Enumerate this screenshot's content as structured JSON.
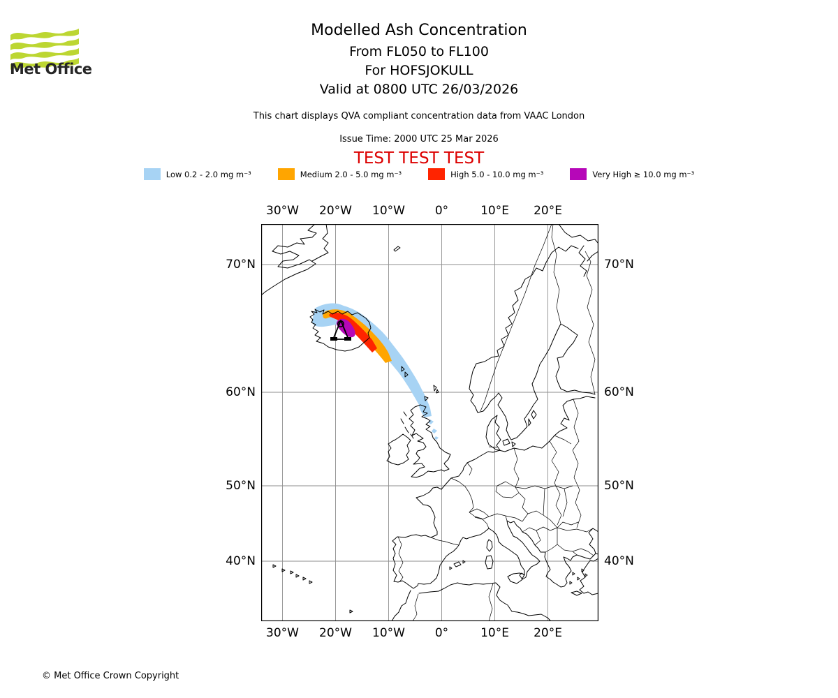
{
  "header": {
    "logo_text": "Met Office",
    "title": "Modelled Ash Concentration",
    "subtitle_flight_levels": "From FL050 to FL100",
    "subtitle_volcano": "For HOFSJOKULL",
    "subtitle_valid": "Valid at 0800 UTC 26/03/2026"
  },
  "info": {
    "qva_note": "This chart displays QVA compliant concentration data from VAAC London",
    "issue_time": "Issue Time: 2000 UTC 25 Mar 2026",
    "test_banner": "TEST TEST TEST",
    "test_color": "#dc0000"
  },
  "legend": {
    "items": [
      {
        "label": "Low 0.2 - 2.0 mg m⁻³",
        "color": "#A7D3F4"
      },
      {
        "label": "Medium 2.0 - 5.0 mg m⁻³",
        "color": "#FFA500"
      },
      {
        "label": "High 5.0 - 10.0 mg m⁻³",
        "color": "#FF2400"
      },
      {
        "label": "Very High ≥ 10.0 mg m⁻³",
        "color": "#B607B8"
      }
    ]
  },
  "map": {
    "x_ticks": [
      "30°W",
      "20°W",
      "10°W",
      "0°",
      "10°E",
      "20°E"
    ],
    "y_ticks": [
      "70°N",
      "60°N",
      "50°N",
      "40°N"
    ],
    "volcano_name": "HOFSJOKULL",
    "grid_color": "#8e8e8e",
    "coast_color": "#000000"
  },
  "footer": {
    "copyright": "© Met Office Crown Copyright"
  },
  "chart_data": {
    "type": "map",
    "projection": "mercator",
    "extent": {
      "lon_min": -34,
      "lon_max": 29.5,
      "lat_min": 31,
      "lat_max": 72.5
    },
    "x_tick_values_deg_east": [
      -30,
      -20,
      -10,
      0,
      10,
      20
    ],
    "y_tick_values_deg_north": [
      70,
      60,
      50,
      40
    ],
    "grid": true,
    "ash_plume": {
      "source_volcano": "HOFSJOKULL",
      "source_location_lonlat": [
        -18.9,
        64.8
      ],
      "plume_axis_lonlat": [
        [
          -19.5,
          64.9
        ],
        [
          -15,
          63.8
        ],
        [
          -10,
          62
        ],
        [
          -6,
          60.5
        ],
        [
          -3.5,
          58.8
        ]
      ],
      "concentration_bands": [
        {
          "level": "Low",
          "range": "0.2 - 2.0 mg m⁻³",
          "color": "#A7D3F4",
          "extent": "broad band from west of Iceland southeast to northern Scotland"
        },
        {
          "level": "Medium",
          "range": "2.0 - 5.0 mg m⁻³",
          "color": "#FFA500",
          "extent": "central Iceland southeast to about 10°W, 62.5°N"
        },
        {
          "level": "High",
          "range": "5.0 - 10.0 mg m⁻³",
          "color": "#FF2400",
          "extent": "over central and southeast Iceland"
        },
        {
          "level": "Very High",
          "range": "≥ 10.0 mg m⁻³",
          "color": "#B607B8",
          "extent": "small area at the Hofsjokull source"
        }
      ]
    }
  }
}
